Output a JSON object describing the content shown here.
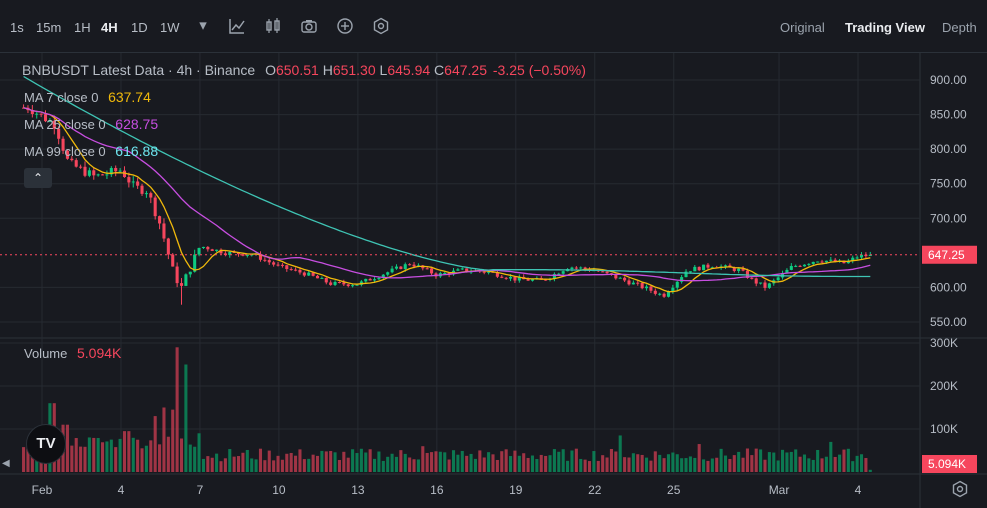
{
  "toolbar": {
    "timeframes": [
      "1s",
      "15m",
      "1H",
      "4H",
      "1D",
      "1W"
    ],
    "active_timeframe": "4H",
    "icons": [
      "chevron-down-icon",
      "indicator-icon",
      "candle-type-icon",
      "camera-icon",
      "add-icon",
      "settings-icon"
    ],
    "views": [
      "Original",
      "Trading View",
      "Depth"
    ],
    "active_view": "Trading View"
  },
  "legend": {
    "symbol": "BNBUSDT Latest Data · 4h · Binance",
    "open_label": "O",
    "open": "650.51",
    "high_label": "H",
    "high": "651.30",
    "low_label": "L",
    "low": "645.94",
    "close_label": "C",
    "close": "647.25",
    "change": "-3.25 (−0.50%)",
    "ma7_label": "MA 7 close 0",
    "ma7_value": "637.74",
    "ma25_label": "MA 25 close 0",
    "ma25_value": "628.75",
    "ma99_label": "MA 99 close 0",
    "ma99_value": "616.88",
    "volume_label": "Volume",
    "volume_value": "5.094K",
    "collapse_glyph": "⌃",
    "logo_text": "TV"
  },
  "colors": {
    "up": "#0ecb81",
    "down": "#f6465d",
    "ma7": "#f0b90b",
    "ma25": "#c74ee0",
    "ma99": "#3fc4b4",
    "grid": "#262a31",
    "axis_text": "#b7bdc6",
    "price_tag": "#f6465d"
  },
  "chart_data": [
    {
      "type": "candlestick",
      "title": "BNBUSDT Latest Data · 4h · Binance",
      "y_ticks": [
        "900.00",
        "850.00",
        "800.00",
        "750.00",
        "700.00",
        "600.00",
        "550.00"
      ],
      "ylim": [
        530,
        920
      ],
      "x_labels": [
        "Feb",
        "4",
        "7",
        "10",
        "13",
        "16",
        "19",
        "22",
        "25",
        "Mar",
        "4"
      ],
      "x_label_days": [
        1,
        4,
        7,
        10,
        13,
        16,
        19,
        22,
        25,
        29,
        32
      ],
      "last_price": "647.25",
      "last_price_value": 647.25,
      "key_closes": [
        [
          0.5,
          860
        ],
        [
          1.5,
          835
        ],
        [
          2.0,
          780
        ],
        [
          3.0,
          760
        ],
        [
          4.0,
          770
        ],
        [
          4.5,
          745
        ],
        [
          5.0,
          740
        ],
        [
          5.5,
          690
        ],
        [
          6.0,
          620
        ],
        [
          6.3,
          600
        ],
        [
          7.0,
          660
        ],
        [
          8.0,
          650
        ],
        [
          9.0,
          648
        ],
        [
          10.0,
          630
        ],
        [
          11.0,
          620
        ],
        [
          12.0,
          605
        ],
        [
          13.0,
          605
        ],
        [
          14.0,
          620
        ],
        [
          15.0,
          635
        ],
        [
          16.0,
          618
        ],
        [
          17.0,
          625
        ],
        [
          18.0,
          622
        ],
        [
          19.0,
          612
        ],
        [
          20.0,
          610
        ],
        [
          21.0,
          630
        ],
        [
          22.0,
          625
        ],
        [
          23.0,
          612
        ],
        [
          24.0,
          598
        ],
        [
          24.6,
          588
        ],
        [
          25.5,
          625
        ],
        [
          26.5,
          632
        ],
        [
          27.5,
          625
        ],
        [
          28.0,
          610
        ],
        [
          28.5,
          600
        ],
        [
          29.5,
          630
        ],
        [
          30.5,
          640
        ],
        [
          31.5,
          635
        ],
        [
          32.0,
          645
        ],
        [
          32.5,
          647
        ]
      ],
      "indicators": [
        {
          "name": "MA 7 close 0",
          "last": 637.74
        },
        {
          "name": "MA 25 close 0",
          "last": 628.75
        },
        {
          "name": "MA 99 close 0",
          "last": 616.88
        }
      ]
    },
    {
      "type": "bar",
      "title": "Volume",
      "y_ticks": [
        "300K",
        "200K",
        "100K"
      ],
      "ylim": [
        0,
        310000
      ],
      "last_volume": "5.094K",
      "last_volume_value": 5094,
      "spikes": [
        [
          1.4,
          160000
        ],
        [
          1.9,
          110000
        ],
        [
          4.2,
          95000
        ],
        [
          5.3,
          130000
        ],
        [
          5.7,
          150000
        ],
        [
          6.0,
          145000
        ],
        [
          6.2,
          290000
        ],
        [
          6.5,
          250000
        ],
        [
          7.0,
          90000
        ],
        [
          15.5,
          60000
        ],
        [
          23.0,
          85000
        ],
        [
          26.0,
          65000
        ],
        [
          31.0,
          70000
        ],
        [
          32.5,
          60000
        ]
      ]
    }
  ]
}
